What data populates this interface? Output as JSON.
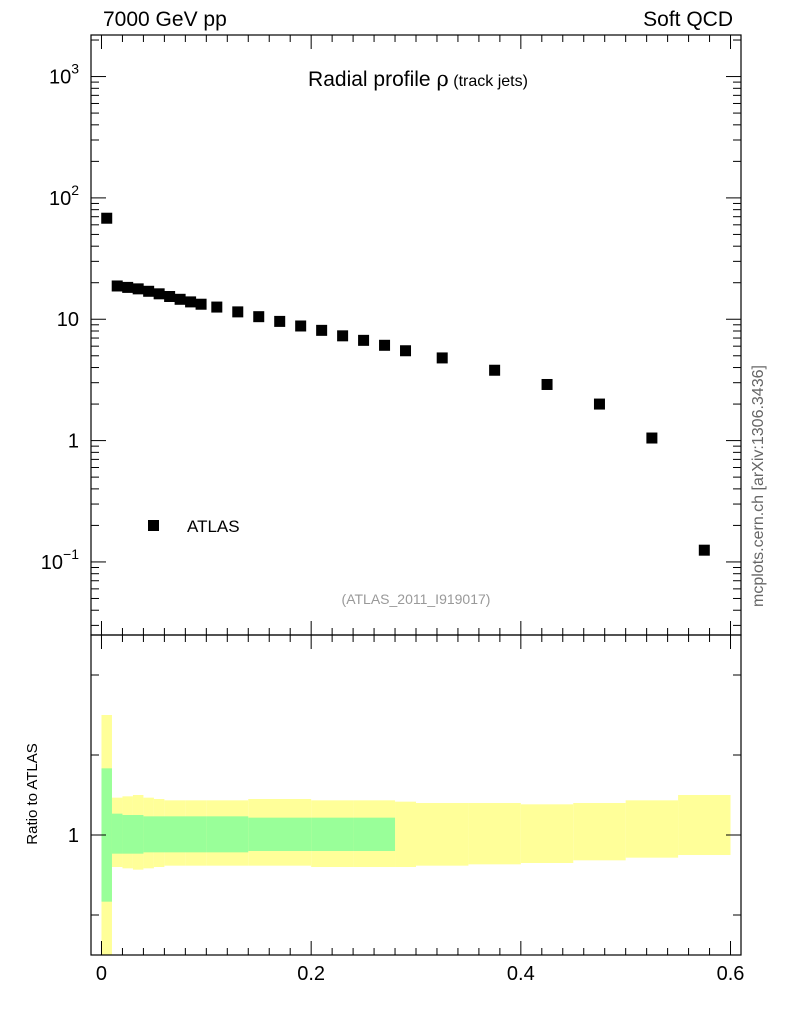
{
  "header": {
    "left": "7000 GeV pp",
    "right": "Soft QCD"
  },
  "side_text": "mcplots.cern.ch [arXiv:1306.3436]",
  "chart_data": [
    {
      "type": "scatter",
      "title_main": "Radial profile ",
      "title_symbol": "ρ",
      "title_sub": " (track jets)",
      "source_label": "(ATLAS_2011_I919017)",
      "legend": [
        {
          "label": "ATLAS",
          "marker": "square",
          "color": "#000000"
        }
      ],
      "yscale": "log",
      "ylim": [
        0.025,
        2200
      ],
      "xlim": [
        -0.01,
        0.61
      ],
      "y_tick_labels": [
        {
          "value": 1000,
          "base": "10",
          "exp": "3"
        },
        {
          "value": 100,
          "base": "10",
          "exp": "2"
        },
        {
          "value": 10,
          "base": "10",
          "exp": ""
        },
        {
          "value": 1,
          "base": "1",
          "exp": ""
        },
        {
          "value": 0.1,
          "base": "10",
          "exp": "−1"
        }
      ],
      "series": [
        {
          "name": "ATLAS",
          "x": [
            0.005,
            0.015,
            0.025,
            0.035,
            0.045,
            0.055,
            0.065,
            0.075,
            0.085,
            0.095,
            0.11,
            0.13,
            0.15,
            0.17,
            0.19,
            0.21,
            0.23,
            0.25,
            0.27,
            0.29,
            0.325,
            0.375,
            0.425,
            0.475,
            0.525,
            0.575
          ],
          "y": [
            68,
            18.8,
            18.3,
            17.8,
            17.0,
            16.2,
            15.4,
            14.6,
            13.9,
            13.3,
            12.6,
            11.5,
            10.5,
            9.6,
            8.8,
            8.1,
            7.3,
            6.7,
            6.1,
            5.5,
            4.8,
            3.8,
            2.9,
            2.0,
            1.05,
            0.125
          ]
        }
      ]
    },
    {
      "type": "area",
      "ylabel": "Ratio to ATLAS",
      "ylim": [
        0.55,
        1.75
      ],
      "xlim": [
        -0.01,
        0.61
      ],
      "y_tick_labels": [
        {
          "value": 1,
          "text": "1"
        }
      ],
      "x_tick_labels": [
        {
          "value": 0,
          "text": "0"
        },
        {
          "value": 0.2,
          "text": "0.2"
        },
        {
          "value": 0.4,
          "text": "0.4"
        },
        {
          "value": 0.6,
          "text": "0.6"
        }
      ],
      "bands": [
        {
          "name": "stat",
          "color": "#99ff99",
          "bins": [
            {
              "x0": 0.0,
              "x1": 0.01,
              "lo": 0.75,
              "hi": 1.25
            },
            {
              "x0": 0.01,
              "x1": 0.02,
              "lo": 0.93,
              "hi": 1.08
            },
            {
              "x0": 0.02,
              "x1": 0.04,
              "lo": 0.93,
              "hi": 1.075
            },
            {
              "x0": 0.04,
              "x1": 0.1,
              "lo": 0.935,
              "hi": 1.07
            },
            {
              "x0": 0.1,
              "x1": 0.14,
              "lo": 0.935,
              "hi": 1.07
            },
            {
              "x0": 0.14,
              "x1": 0.2,
              "lo": 0.94,
              "hi": 1.065
            },
            {
              "x0": 0.2,
              "x1": 0.24,
              "lo": 0.94,
              "hi": 1.065
            },
            {
              "x0": 0.24,
              "x1": 0.28,
              "lo": 0.94,
              "hi": 1.065
            }
          ]
        },
        {
          "name": "total",
          "color": "#ffff99",
          "bins": [
            {
              "x0": 0.0,
              "x1": 0.01,
              "lo": 0.55,
              "hi": 1.45
            },
            {
              "x0": 0.01,
              "x1": 0.02,
              "lo": 0.88,
              "hi": 1.14
            },
            {
              "x0": 0.02,
              "x1": 0.03,
              "lo": 0.875,
              "hi": 1.145
            },
            {
              "x0": 0.03,
              "x1": 0.04,
              "lo": 0.87,
              "hi": 1.15
            },
            {
              "x0": 0.04,
              "x1": 0.05,
              "lo": 0.875,
              "hi": 1.14
            },
            {
              "x0": 0.05,
              "x1": 0.06,
              "lo": 0.88,
              "hi": 1.135
            },
            {
              "x0": 0.06,
              "x1": 0.08,
              "lo": 0.885,
              "hi": 1.13
            },
            {
              "x0": 0.08,
              "x1": 0.1,
              "lo": 0.885,
              "hi": 1.13
            },
            {
              "x0": 0.1,
              "x1": 0.14,
              "lo": 0.885,
              "hi": 1.13
            },
            {
              "x0": 0.14,
              "x1": 0.2,
              "lo": 0.885,
              "hi": 1.135
            },
            {
              "x0": 0.2,
              "x1": 0.24,
              "lo": 0.88,
              "hi": 1.13
            },
            {
              "x0": 0.24,
              "x1": 0.28,
              "lo": 0.88,
              "hi": 1.13
            },
            {
              "x0": 0.28,
              "x1": 0.3,
              "lo": 0.88,
              "hi": 1.125
            },
            {
              "x0": 0.3,
              "x1": 0.35,
              "lo": 0.885,
              "hi": 1.12
            },
            {
              "x0": 0.35,
              "x1": 0.4,
              "lo": 0.89,
              "hi": 1.12
            },
            {
              "x0": 0.4,
              "x1": 0.45,
              "lo": 0.895,
              "hi": 1.115
            },
            {
              "x0": 0.45,
              "x1": 0.5,
              "lo": 0.905,
              "hi": 1.12
            },
            {
              "x0": 0.5,
              "x1": 0.55,
              "lo": 0.915,
              "hi": 1.13
            },
            {
              "x0": 0.55,
              "x1": 0.6,
              "lo": 0.925,
              "hi": 1.15
            }
          ]
        }
      ]
    }
  ]
}
